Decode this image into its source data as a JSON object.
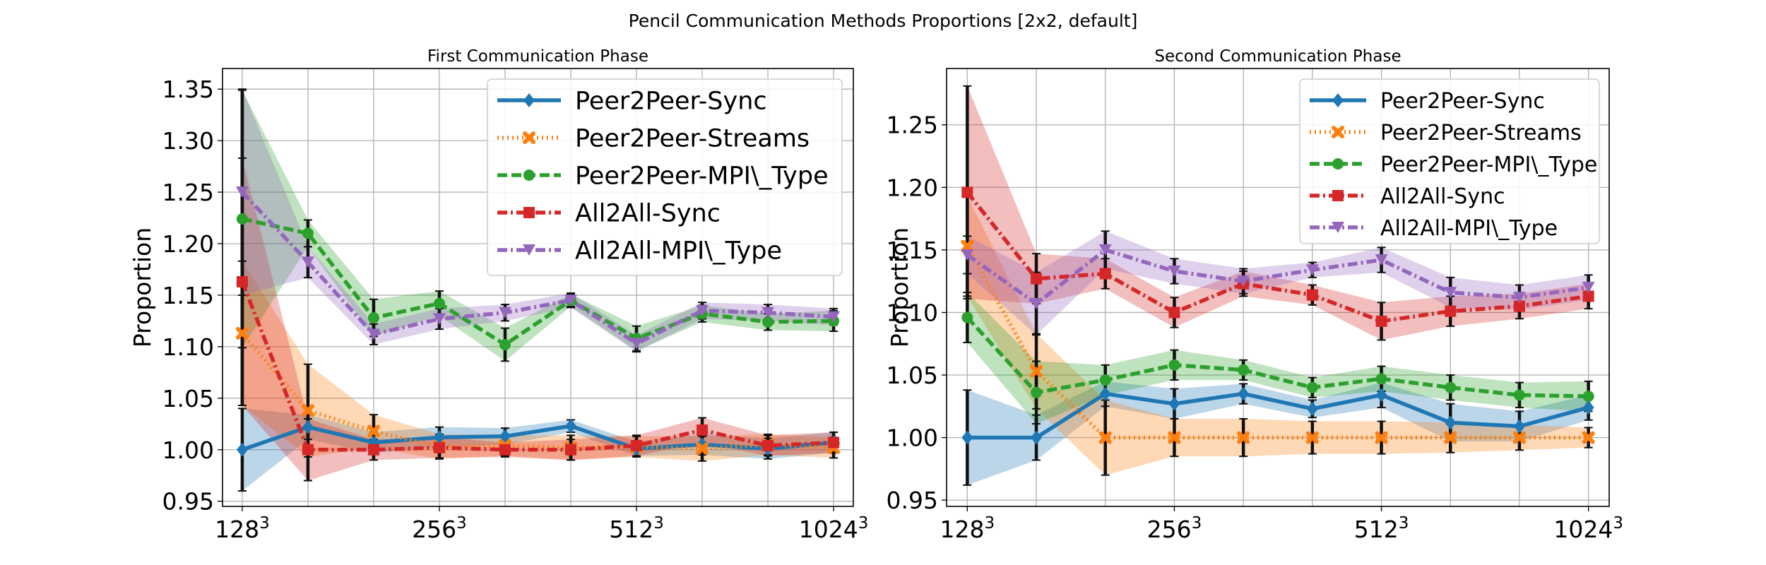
{
  "suptitle": "Pencil Communication Methods Proportions [2x2, default]",
  "chart_data": [
    {
      "type": "line",
      "title": "First Communication Phase",
      "xlabel": "",
      "ylabel": "Proportion",
      "x_ticks": [
        {
          "base": "128",
          "sup": "3"
        },
        {
          "base": "256",
          "sup": "3"
        },
        {
          "base": "512",
          "sup": "3"
        },
        {
          "base": "1024",
          "sup": "3"
        }
      ],
      "y_ticks": [
        "0.95",
        "1.00",
        "1.05",
        "1.10",
        "1.15",
        "1.20",
        "1.25",
        "1.30",
        "1.35"
      ],
      "xlim": [
        -0.3,
        9.3
      ],
      "ylim": [
        0.945,
        1.37
      ],
      "grid": true,
      "legend": "top-right",
      "series": [
        {
          "name": "Peer2Peer-Sync",
          "color": "#1f77b4",
          "dash": "",
          "marker": "diamond",
          "values": [
            1.0,
            1.022,
            1.007,
            1.012,
            1.013,
            1.023,
            1.001,
            1.005,
            1.001,
            1.007
          ],
          "band": [
            0.04,
            0.012,
            0.01,
            0.01,
            0.008,
            0.006,
            0.007,
            0.01,
            0.01,
            0.01
          ],
          "err": [
            0.04,
            0.012,
            0.01,
            0.01,
            0.008,
            0.006,
            0.007,
            0.01,
            0.01,
            0.01
          ]
        },
        {
          "name": "Peer2Peer-Streams",
          "color": "#ff7f0e",
          "dash": "2,5",
          "marker": "x",
          "values": [
            1.113,
            1.038,
            1.018,
            1.003,
            1.004,
            1.002,
            1.003,
            1.001,
            1.005,
            1.002
          ],
          "band": [
            0.07,
            0.045,
            0.016,
            0.012,
            0.01,
            0.012,
            0.01,
            0.012,
            0.01,
            0.01
          ],
          "err": [
            0.07,
            0.045,
            0.016,
            0.012,
            0.01,
            0.012,
            0.01,
            0.012,
            0.01,
            0.01
          ]
        },
        {
          "name": "Peer2Peer-MPI\\_Type",
          "color": "#2ca02c",
          "dash": "14,6",
          "marker": "circle",
          "values": [
            1.224,
            1.21,
            1.128,
            1.142,
            1.102,
            1.145,
            1.108,
            1.132,
            1.124,
            1.125
          ],
          "band": [
            0.125,
            0.013,
            0.018,
            0.012,
            0.016,
            0.006,
            0.012,
            0.008,
            0.008,
            0.01
          ],
          "err": [
            0.125,
            0.013,
            0.018,
            0.012,
            0.016,
            0.006,
            0.012,
            0.008,
            0.008,
            0.01
          ]
        },
        {
          "name": "All2All-Sync",
          "color": "#d62728",
          "dash": "14,5,3,5",
          "marker": "square",
          "values": [
            1.163,
            1.0,
            1.0,
            1.002,
            1.0,
            1.0,
            1.004,
            1.019,
            1.004,
            1.007
          ],
          "band": [
            0.12,
            0.03,
            0.01,
            0.01,
            0.007,
            0.01,
            0.01,
            0.012,
            0.01,
            0.01
          ],
          "err": [
            0.12,
            0.03,
            0.01,
            0.01,
            0.007,
            0.01,
            0.01,
            0.012,
            0.01,
            0.01
          ]
        },
        {
          "name": "All2All-MPI\\_Type",
          "color": "#9467bd",
          "dash": "14,5,3,5",
          "marker": "triangle-down",
          "values": [
            1.25,
            1.182,
            1.112,
            1.127,
            1.133,
            1.145,
            1.103,
            1.135,
            1.133,
            1.129
          ],
          "band": [
            0.1,
            0.015,
            0.01,
            0.01,
            0.008,
            0.007,
            0.008,
            0.008,
            0.008,
            0.008
          ],
          "err": [
            0.1,
            0.015,
            0.01,
            0.01,
            0.008,
            0.007,
            0.008,
            0.008,
            0.008,
            0.008
          ]
        }
      ]
    },
    {
      "type": "line",
      "title": "Second Communication Phase",
      "xlabel": "",
      "ylabel": "Proportion",
      "x_ticks": [
        {
          "base": "128",
          "sup": "3"
        },
        {
          "base": "256",
          "sup": "3"
        },
        {
          "base": "512",
          "sup": "3"
        },
        {
          "base": "1024",
          "sup": "3"
        }
      ],
      "y_ticks": [
        "0.95",
        "1.00",
        "1.05",
        "1.10",
        "1.15",
        "1.20",
        "1.25"
      ],
      "xlim": [
        -0.3,
        9.3
      ],
      "ylim": [
        0.945,
        1.295
      ],
      "grid": true,
      "legend": "top-right",
      "series": [
        {
          "name": "Peer2Peer-Sync",
          "color": "#1f77b4",
          "dash": "",
          "marker": "diamond",
          "values": [
            1.0,
            1.0,
            1.035,
            1.027,
            1.035,
            1.023,
            1.034,
            1.012,
            1.009,
            1.024
          ],
          "band": [
            0.038,
            0.018,
            0.01,
            0.012,
            0.008,
            0.007,
            0.01,
            0.015,
            0.012,
            0.01
          ],
          "err": [
            0.038,
            0.018,
            0.01,
            0.012,
            0.008,
            0.007,
            0.01,
            0.015,
            0.012,
            0.01
          ]
        },
        {
          "name": "Peer2Peer-Streams",
          "color": "#ff7f0e",
          "dash": "2,5",
          "marker": "x",
          "values": [
            1.153,
            1.053,
            1.0,
            1.0,
            1.0,
            1.0,
            1.0,
            1.0,
            1.0,
            1.0
          ],
          "band": [
            0.04,
            0.03,
            0.03,
            0.015,
            0.015,
            0.013,
            0.013,
            0.012,
            0.01,
            0.008
          ],
          "err": [
            0.04,
            0.03,
            0.03,
            0.015,
            0.015,
            0.013,
            0.013,
            0.012,
            0.01,
            0.008
          ]
        },
        {
          "name": "Peer2Peer-MPI\\_Type",
          "color": "#2ca02c",
          "dash": "14,6",
          "marker": "circle",
          "values": [
            1.096,
            1.036,
            1.046,
            1.058,
            1.054,
            1.04,
            1.047,
            1.04,
            1.034,
            1.033
          ],
          "band": [
            0.02,
            0.025,
            0.012,
            0.012,
            0.008,
            0.008,
            0.01,
            0.01,
            0.01,
            0.012
          ],
          "err": [
            0.02,
            0.025,
            0.012,
            0.012,
            0.008,
            0.008,
            0.01,
            0.01,
            0.01,
            0.012
          ]
        },
        {
          "name": "All2All-Sync",
          "color": "#d62728",
          "dash": "14,5,3,5",
          "marker": "square",
          "values": [
            1.196,
            1.127,
            1.131,
            1.1,
            1.123,
            1.114,
            1.093,
            1.101,
            1.105,
            1.113
          ],
          "band": [
            0.085,
            0.02,
            0.012,
            0.012,
            0.01,
            0.008,
            0.015,
            0.012,
            0.01,
            0.01
          ],
          "err": [
            0.085,
            0.02,
            0.012,
            0.012,
            0.01,
            0.008,
            0.015,
            0.012,
            0.01,
            0.01
          ]
        },
        {
          "name": "All2All-MPI\\_Type",
          "color": "#9467bd",
          "dash": "14,5,3,5",
          "marker": "triangle-down",
          "values": [
            1.146,
            1.107,
            1.15,
            1.133,
            1.125,
            1.134,
            1.142,
            1.116,
            1.112,
            1.12
          ],
          "band": [
            0.015,
            0.025,
            0.015,
            0.01,
            0.01,
            0.006,
            0.01,
            0.012,
            0.01,
            0.01
          ],
          "err": [
            0.015,
            0.025,
            0.015,
            0.01,
            0.01,
            0.006,
            0.01,
            0.012,
            0.01,
            0.01
          ]
        }
      ]
    }
  ]
}
